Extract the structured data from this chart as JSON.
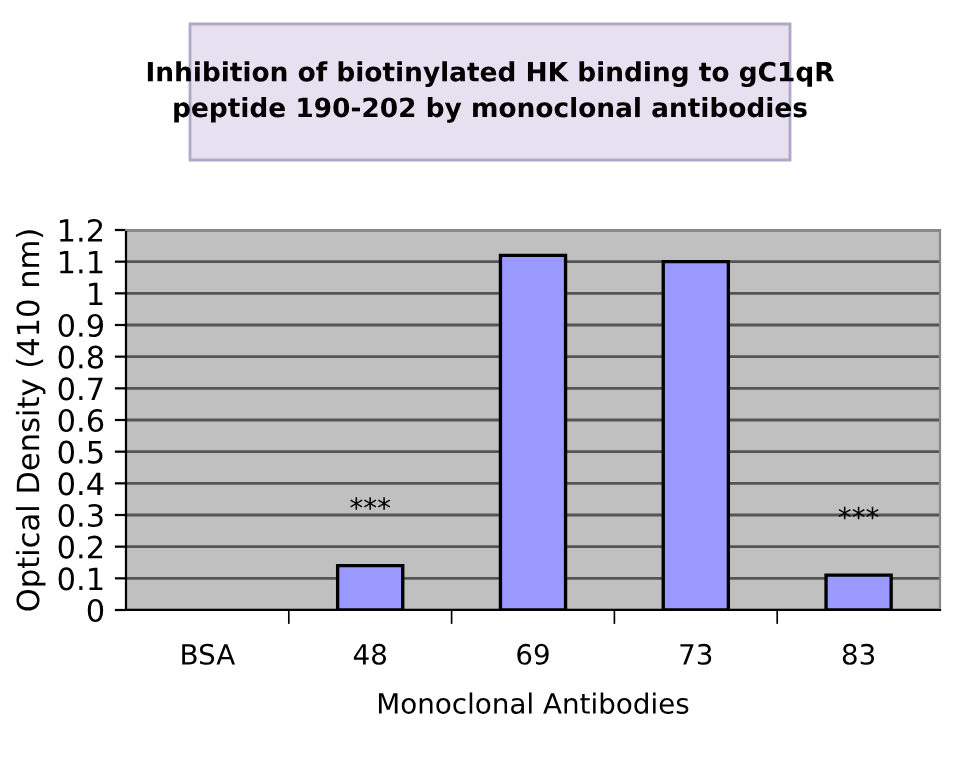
{
  "chart_data": {
    "type": "bar",
    "title": "Inhibition of biotinylated HK binding to gC1qR\npeptide 190-202 by monoclonal antibodies",
    "xlabel": "Monoclonal Antibodies",
    "ylabel": "Optical Density (410 nm)",
    "categories": [
      "BSA",
      "48",
      "69",
      "73",
      "83"
    ],
    "values": [
      null,
      0.14,
      1.12,
      1.1,
      0.11
    ],
    "color": "#9999ff",
    "ylim": [
      0,
      1.2
    ],
    "yticks": [
      0,
      0.1,
      0.2,
      0.3,
      0.4,
      0.5,
      0.6,
      0.7,
      0.8,
      0.9,
      1,
      1.1,
      1.2
    ],
    "grid": "y",
    "annotations": [
      {
        "text": "***",
        "x": "48",
        "y": 0.14
      },
      {
        "text": "***",
        "x": "83",
        "y": 0.11
      }
    ]
  }
}
